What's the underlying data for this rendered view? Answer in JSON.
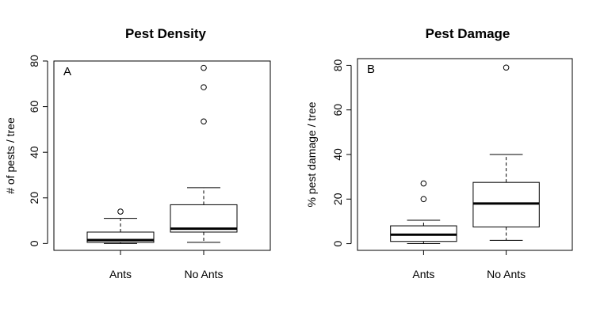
{
  "chart_data": [
    {
      "type": "boxplot",
      "title": "Pest Density",
      "panel_label": "A",
      "ylabel": "# of pests / tree",
      "ylim": [
        -3,
        80
      ],
      "yticks": [
        0,
        20,
        40,
        60,
        80
      ],
      "categories": [
        "Ants",
        "No Ants"
      ],
      "boxes": [
        {
          "category": "Ants",
          "whisker_low": 0,
          "q1": 0.5,
          "median": 1.5,
          "q3": 5,
          "whisker_high": 11,
          "outliers": [
            14
          ]
        },
        {
          "category": "No Ants",
          "whisker_low": 0.5,
          "q1": 5,
          "median": 6.5,
          "q3": 17,
          "whisker_high": 24.5,
          "outliers": [
            53.5,
            68.5,
            77
          ]
        }
      ]
    },
    {
      "type": "boxplot",
      "title": "Pest Damage",
      "panel_label": "B",
      "ylabel": "% pest damage / tree",
      "ylim": [
        -3,
        83
      ],
      "yticks": [
        0,
        20,
        40,
        60,
        80
      ],
      "categories": [
        "Ants",
        "No Ants"
      ],
      "boxes": [
        {
          "category": "Ants",
          "whisker_low": 0,
          "q1": 1,
          "median": 4,
          "q3": 8,
          "whisker_high": 10.5,
          "outliers": [
            20,
            27
          ]
        },
        {
          "category": "No Ants",
          "whisker_low": 1.5,
          "q1": 7.5,
          "median": 18,
          "q3": 27.5,
          "whisker_high": 40,
          "outliers": [
            79
          ]
        }
      ]
    }
  ]
}
